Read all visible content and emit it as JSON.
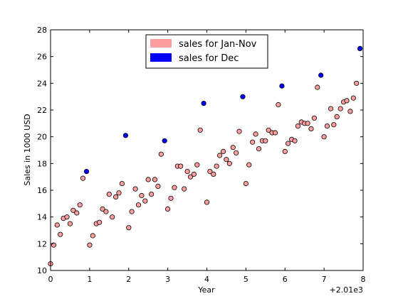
{
  "chart_data": {
    "type": "scatter",
    "title": "",
    "xlabel": "Year",
    "ylabel": "Sales in 1000 USD",
    "x_offset_label": "+2.01e3",
    "xlim": [
      0,
      8
    ],
    "ylim": [
      10,
      28
    ],
    "xticks": [
      0,
      1,
      2,
      3,
      4,
      5,
      6,
      7,
      8
    ],
    "yticks": [
      10,
      12,
      14,
      16,
      18,
      20,
      22,
      24,
      26,
      28
    ],
    "grid": false,
    "legend_position": "top-center",
    "series": [
      {
        "name": "sales for Jan-Nov",
        "color": "#ff9e9e",
        "edge_color": "#000000",
        "points": [
          [
            0.0,
            10.5
          ],
          [
            0.08,
            11.9
          ],
          [
            0.17,
            13.4
          ],
          [
            0.25,
            12.7
          ],
          [
            0.33,
            13.9
          ],
          [
            0.42,
            14.0
          ],
          [
            0.5,
            13.5
          ],
          [
            0.58,
            14.5
          ],
          [
            0.67,
            14.3
          ],
          [
            0.75,
            14.9
          ],
          [
            0.83,
            16.9
          ],
          [
            1.0,
            11.9
          ],
          [
            1.08,
            12.6
          ],
          [
            1.17,
            13.5
          ],
          [
            1.25,
            13.6
          ],
          [
            1.33,
            14.6
          ],
          [
            1.42,
            14.4
          ],
          [
            1.5,
            15.7
          ],
          [
            1.58,
            14.0
          ],
          [
            1.67,
            15.5
          ],
          [
            1.75,
            15.8
          ],
          [
            1.83,
            16.5
          ],
          [
            2.0,
            13.2
          ],
          [
            2.08,
            14.4
          ],
          [
            2.17,
            16.1
          ],
          [
            2.25,
            14.9
          ],
          [
            2.33,
            15.6
          ],
          [
            2.42,
            15.2
          ],
          [
            2.5,
            16.8
          ],
          [
            2.58,
            15.7
          ],
          [
            2.67,
            16.8
          ],
          [
            2.75,
            16.3
          ],
          [
            2.83,
            18.7
          ],
          [
            3.0,
            14.6
          ],
          [
            3.08,
            15.4
          ],
          [
            3.17,
            16.2
          ],
          [
            3.25,
            17.8
          ],
          [
            3.33,
            17.8
          ],
          [
            3.42,
            16.1
          ],
          [
            3.5,
            17.4
          ],
          [
            3.58,
            17.0
          ],
          [
            3.67,
            17.2
          ],
          [
            3.75,
            17.9
          ],
          [
            3.83,
            20.5
          ],
          [
            4.0,
            15.1
          ],
          [
            4.08,
            17.4
          ],
          [
            4.17,
            17.2
          ],
          [
            4.25,
            17.8
          ],
          [
            4.33,
            18.6
          ],
          [
            4.42,
            18.9
          ],
          [
            4.5,
            18.3
          ],
          [
            4.58,
            18.0
          ],
          [
            4.67,
            19.2
          ],
          [
            4.75,
            18.8
          ],
          [
            4.83,
            20.4
          ],
          [
            5.0,
            16.5
          ],
          [
            5.08,
            17.9
          ],
          [
            5.17,
            19.6
          ],
          [
            5.25,
            20.2
          ],
          [
            5.33,
            19.1
          ],
          [
            5.42,
            19.7
          ],
          [
            5.5,
            19.7
          ],
          [
            5.58,
            20.5
          ],
          [
            5.67,
            20.3
          ],
          [
            5.75,
            20.3
          ],
          [
            5.83,
            22.4
          ],
          [
            6.0,
            18.9
          ],
          [
            6.08,
            19.5
          ],
          [
            6.17,
            19.8
          ],
          [
            6.25,
            19.7
          ],
          [
            6.33,
            20.8
          ],
          [
            6.42,
            21.1
          ],
          [
            6.5,
            21.0
          ],
          [
            6.58,
            21.0
          ],
          [
            6.67,
            20.6
          ],
          [
            6.75,
            21.4
          ],
          [
            6.83,
            23.7
          ],
          [
            7.0,
            20.0
          ],
          [
            7.08,
            20.8
          ],
          [
            7.17,
            22.1
          ],
          [
            7.25,
            20.9
          ],
          [
            7.33,
            21.5
          ],
          [
            7.42,
            22.1
          ],
          [
            7.5,
            22.6
          ],
          [
            7.58,
            22.7
          ],
          [
            7.67,
            21.9
          ],
          [
            7.75,
            22.9
          ],
          [
            7.83,
            24.0
          ]
        ]
      },
      {
        "name": "sales for Dec",
        "color": "#0000ff",
        "edge_color": "#000000",
        "points": [
          [
            0.92,
            17.4
          ],
          [
            1.92,
            20.1
          ],
          [
            2.92,
            19.7
          ],
          [
            3.92,
            22.5
          ],
          [
            4.92,
            23.0
          ],
          [
            5.92,
            23.8
          ],
          [
            6.92,
            24.6
          ],
          [
            7.92,
            26.6
          ]
        ]
      }
    ]
  }
}
